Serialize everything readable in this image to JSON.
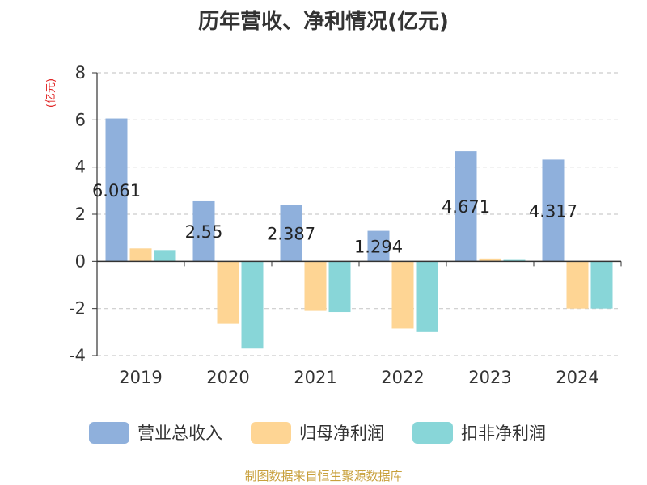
{
  "chart_data": {
    "type": "bar",
    "title": "历年营收、净利情况(亿元)",
    "ylabel": "(亿元)",
    "xlabel": "",
    "categories": [
      "2019",
      "2020",
      "2021",
      "2022",
      "2023",
      "2024"
    ],
    "ylim": [
      -4,
      8
    ],
    "yticks": [
      -4,
      -2,
      0,
      2,
      4,
      6,
      8
    ],
    "grid": true,
    "legend_position": "bottom",
    "series": [
      {
        "name": "营业总收入",
        "values": [
          6.061,
          2.55,
          2.387,
          1.294,
          4.671,
          4.317
        ],
        "color": "#8fb0dc",
        "data_labels": [
          "6.061",
          "2.55",
          "2.387",
          "1.294",
          "4.671",
          "4.317"
        ]
      },
      {
        "name": "归母净利润",
        "values": [
          0.55,
          -2.65,
          -2.1,
          -2.85,
          0.12,
          -2.0
        ],
        "color": "#fed594"
      },
      {
        "name": "扣非净利润",
        "values": [
          0.48,
          -3.7,
          -2.15,
          -3.0,
          0.06,
          -2.0
        ],
        "color": "#88d6d8"
      }
    ]
  },
  "source": "制图数据来自恒生聚源数据库",
  "colors": {
    "ylabel": "#e02020",
    "source": "#c8a03c",
    "grid": "#cccccc",
    "axis": "#333333",
    "text": "#333333"
  }
}
